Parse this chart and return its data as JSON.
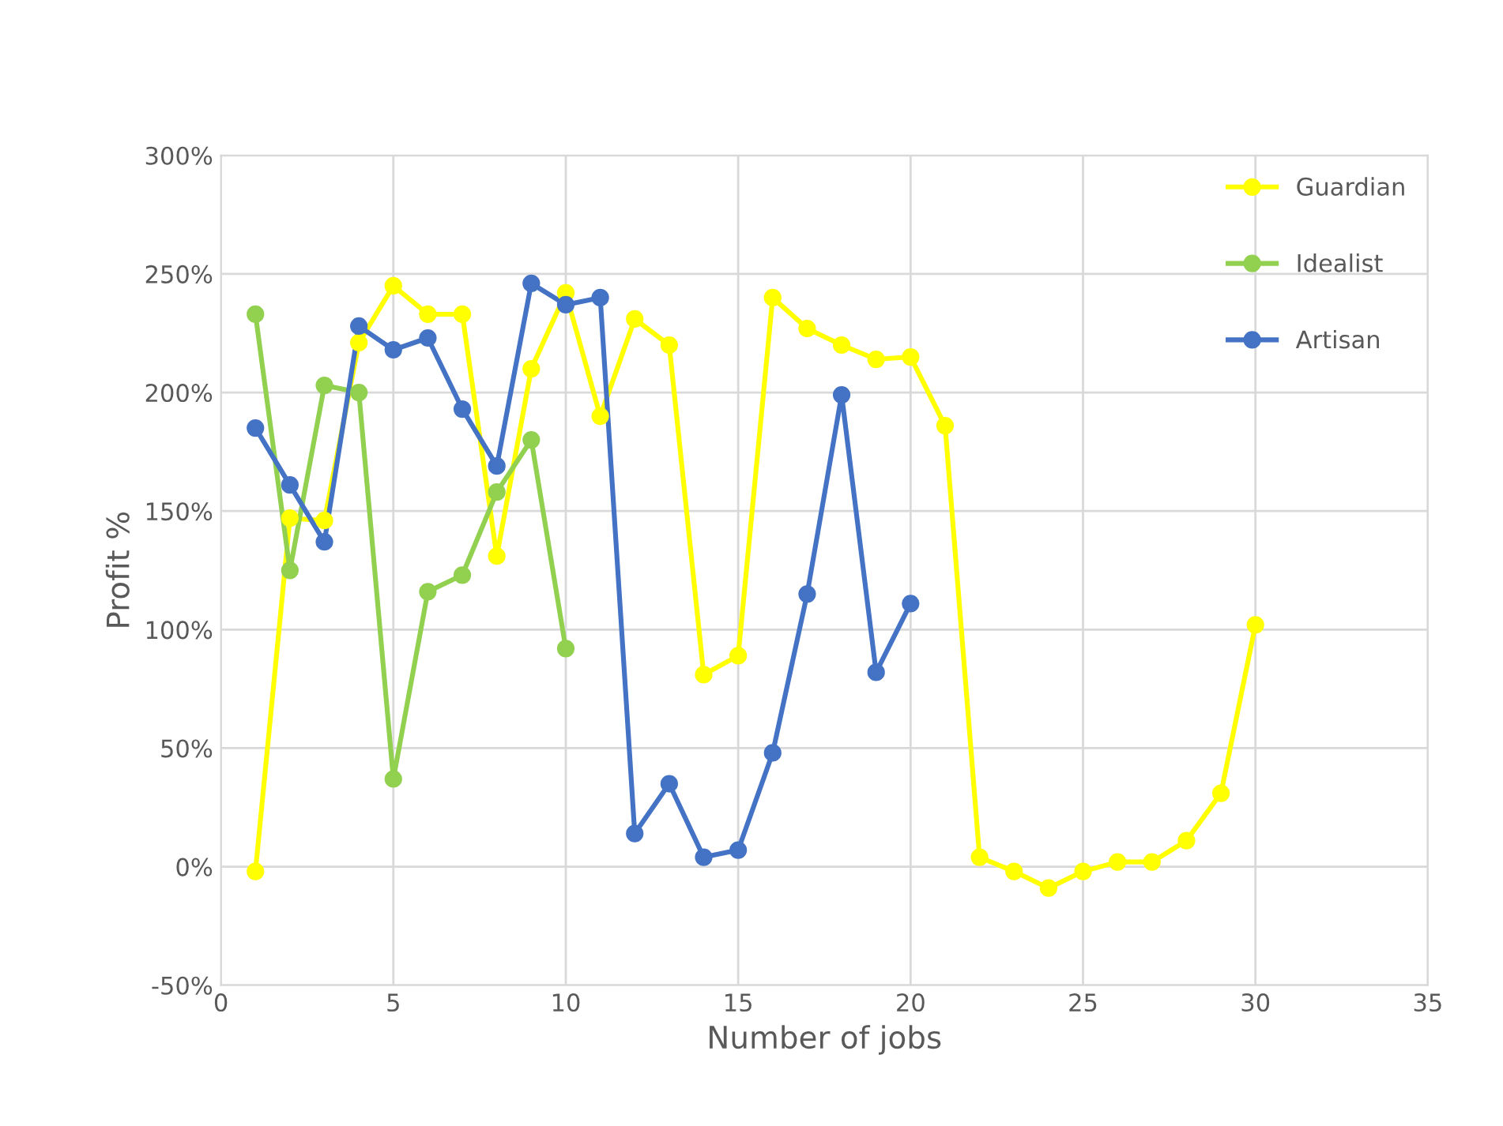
{
  "chart_data": {
    "type": "line",
    "xlabel": "Number of jobs",
    "ylabel": "Profit %",
    "xlim": [
      0,
      35
    ],
    "xticks": [
      0,
      5,
      10,
      15,
      20,
      25,
      30,
      35
    ],
    "ylim": [
      -50,
      300
    ],
    "yticks": [
      {
        "value": -50,
        "label": "-50%"
      },
      {
        "value": 0,
        "label": "0%"
      },
      {
        "value": 50,
        "label": "50%"
      },
      {
        "value": 100,
        "label": "100%"
      },
      {
        "value": 150,
        "label": "150%"
      },
      {
        "value": 200,
        "label": "200%"
      },
      {
        "value": 250,
        "label": "250%"
      },
      {
        "value": 300,
        "label": "300%"
      }
    ],
    "grid": true,
    "legend": "top right",
    "marker": "circle",
    "line_style": "solid",
    "series": [
      {
        "name": "Guardian",
        "color": "#ffff00",
        "x": [
          1,
          2,
          3,
          4,
          5,
          6,
          7,
          8,
          9,
          10,
          11,
          12,
          13,
          14,
          15,
          16,
          17,
          18,
          19,
          20,
          21,
          22,
          23,
          24,
          25,
          26,
          27,
          28,
          29,
          30
        ],
        "values": [
          -2,
          147,
          146,
          221,
          245,
          233,
          233,
          131,
          210,
          242,
          190,
          231,
          220,
          81,
          89,
          240,
          227,
          220,
          214,
          215,
          186,
          4,
          -2,
          -9,
          -2,
          2,
          2,
          11,
          31,
          102
        ]
      },
      {
        "name": "Idealist",
        "color": "#92d050",
        "x": [
          1,
          2,
          3,
          4,
          5,
          6,
          7,
          8,
          9,
          10
        ],
        "values": [
          233,
          125,
          203,
          200,
          37,
          116,
          123,
          158,
          180,
          92
        ]
      },
      {
        "name": "Artisan",
        "color": "#4472c4",
        "x": [
          1,
          2,
          3,
          4,
          5,
          6,
          7,
          8,
          9,
          10,
          11,
          12,
          13,
          14,
          15,
          16,
          17,
          18,
          19,
          20
        ],
        "values": [
          185,
          161,
          137,
          228,
          218,
          223,
          193,
          169,
          246,
          237,
          240,
          14,
          35,
          4,
          7,
          48,
          115,
          199,
          82,
          111
        ]
      }
    ]
  }
}
